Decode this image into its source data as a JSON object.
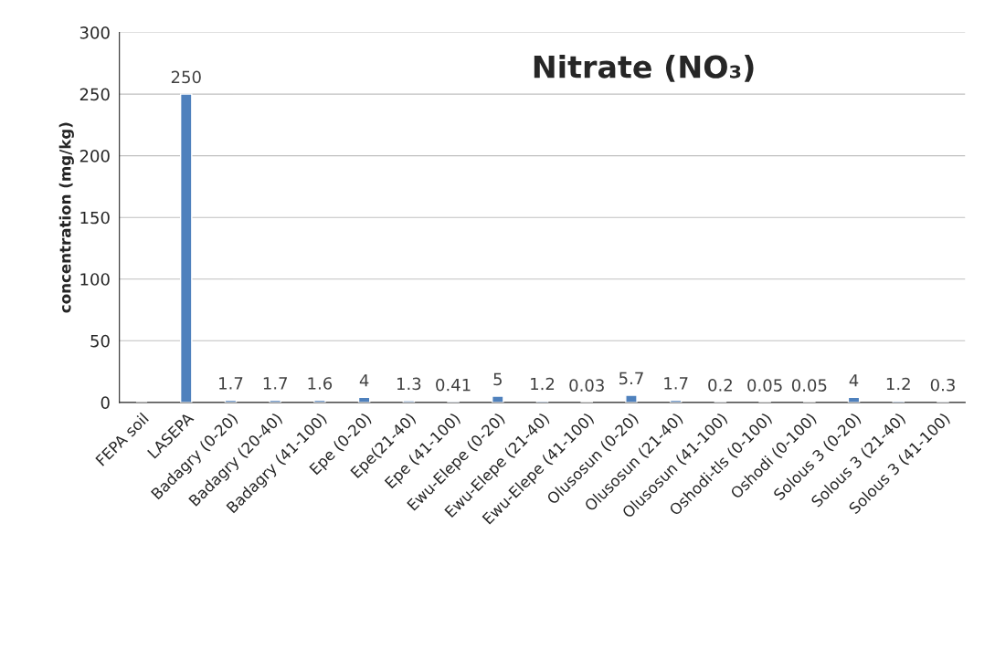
{
  "chart_data": {
    "type": "bar",
    "title": "Nitrate (NO₃)",
    "ylabel": "concentration (mg/kg)",
    "categories": [
      "FEPA soil",
      "LASEPA",
      "Badagry (0-20)",
      "Badagry (20-40)",
      "Badagry (41-100)",
      "Epe (0-20)",
      "Epe(21-40)",
      "Epe (41-100)",
      "Ewu-Elepe (0-20)",
      "Ewu-Elepe (21-40)",
      "Ewu-Elepe (41-100)",
      "Olusosun (0-20)",
      "Olusosun (21-40)",
      "Olusosun (41-100)",
      "Oshodi-tls (0-100)",
      "Oshodi (0-100)",
      "Solous 3 (0-20)",
      "Solous 3 (21-40)",
      "Solous 3 (41-100)"
    ],
    "values": [
      null,
      250,
      1.7,
      1.7,
      1.6,
      4,
      1.3,
      0.41,
      5,
      1.2,
      0.03,
      5.7,
      1.7,
      0.2,
      0.05,
      0.05,
      4,
      1.2,
      0.3
    ],
    "color": "#4f81bd",
    "ylim": [
      0,
      300
    ],
    "yticks": [
      0,
      50,
      100,
      150,
      200,
      250,
      300
    ],
    "grid": "y",
    "data_labels": true
  }
}
